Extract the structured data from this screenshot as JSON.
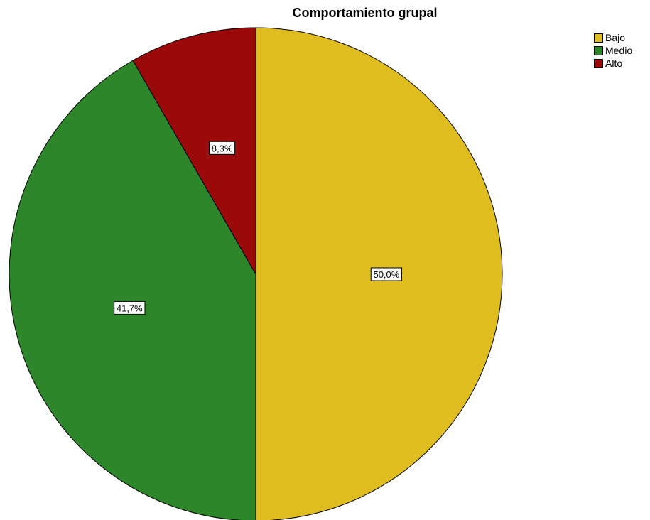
{
  "chart_data": {
    "type": "pie",
    "title": "Comportamiento grupal",
    "slices": [
      {
        "label": "Bajo",
        "value": 50.0,
        "display": "50,0%",
        "color": "#e0bd1f"
      },
      {
        "label": "Medio",
        "value": 41.7,
        "display": "41,7%",
        "color": "#2d872a"
      },
      {
        "label": "Alto",
        "value": 8.3,
        "display": "8,3%",
        "color": "#9b0a0a"
      }
    ],
    "legend_position": "top-right",
    "start_angle": "12 o'clock",
    "direction": "clockwise"
  }
}
